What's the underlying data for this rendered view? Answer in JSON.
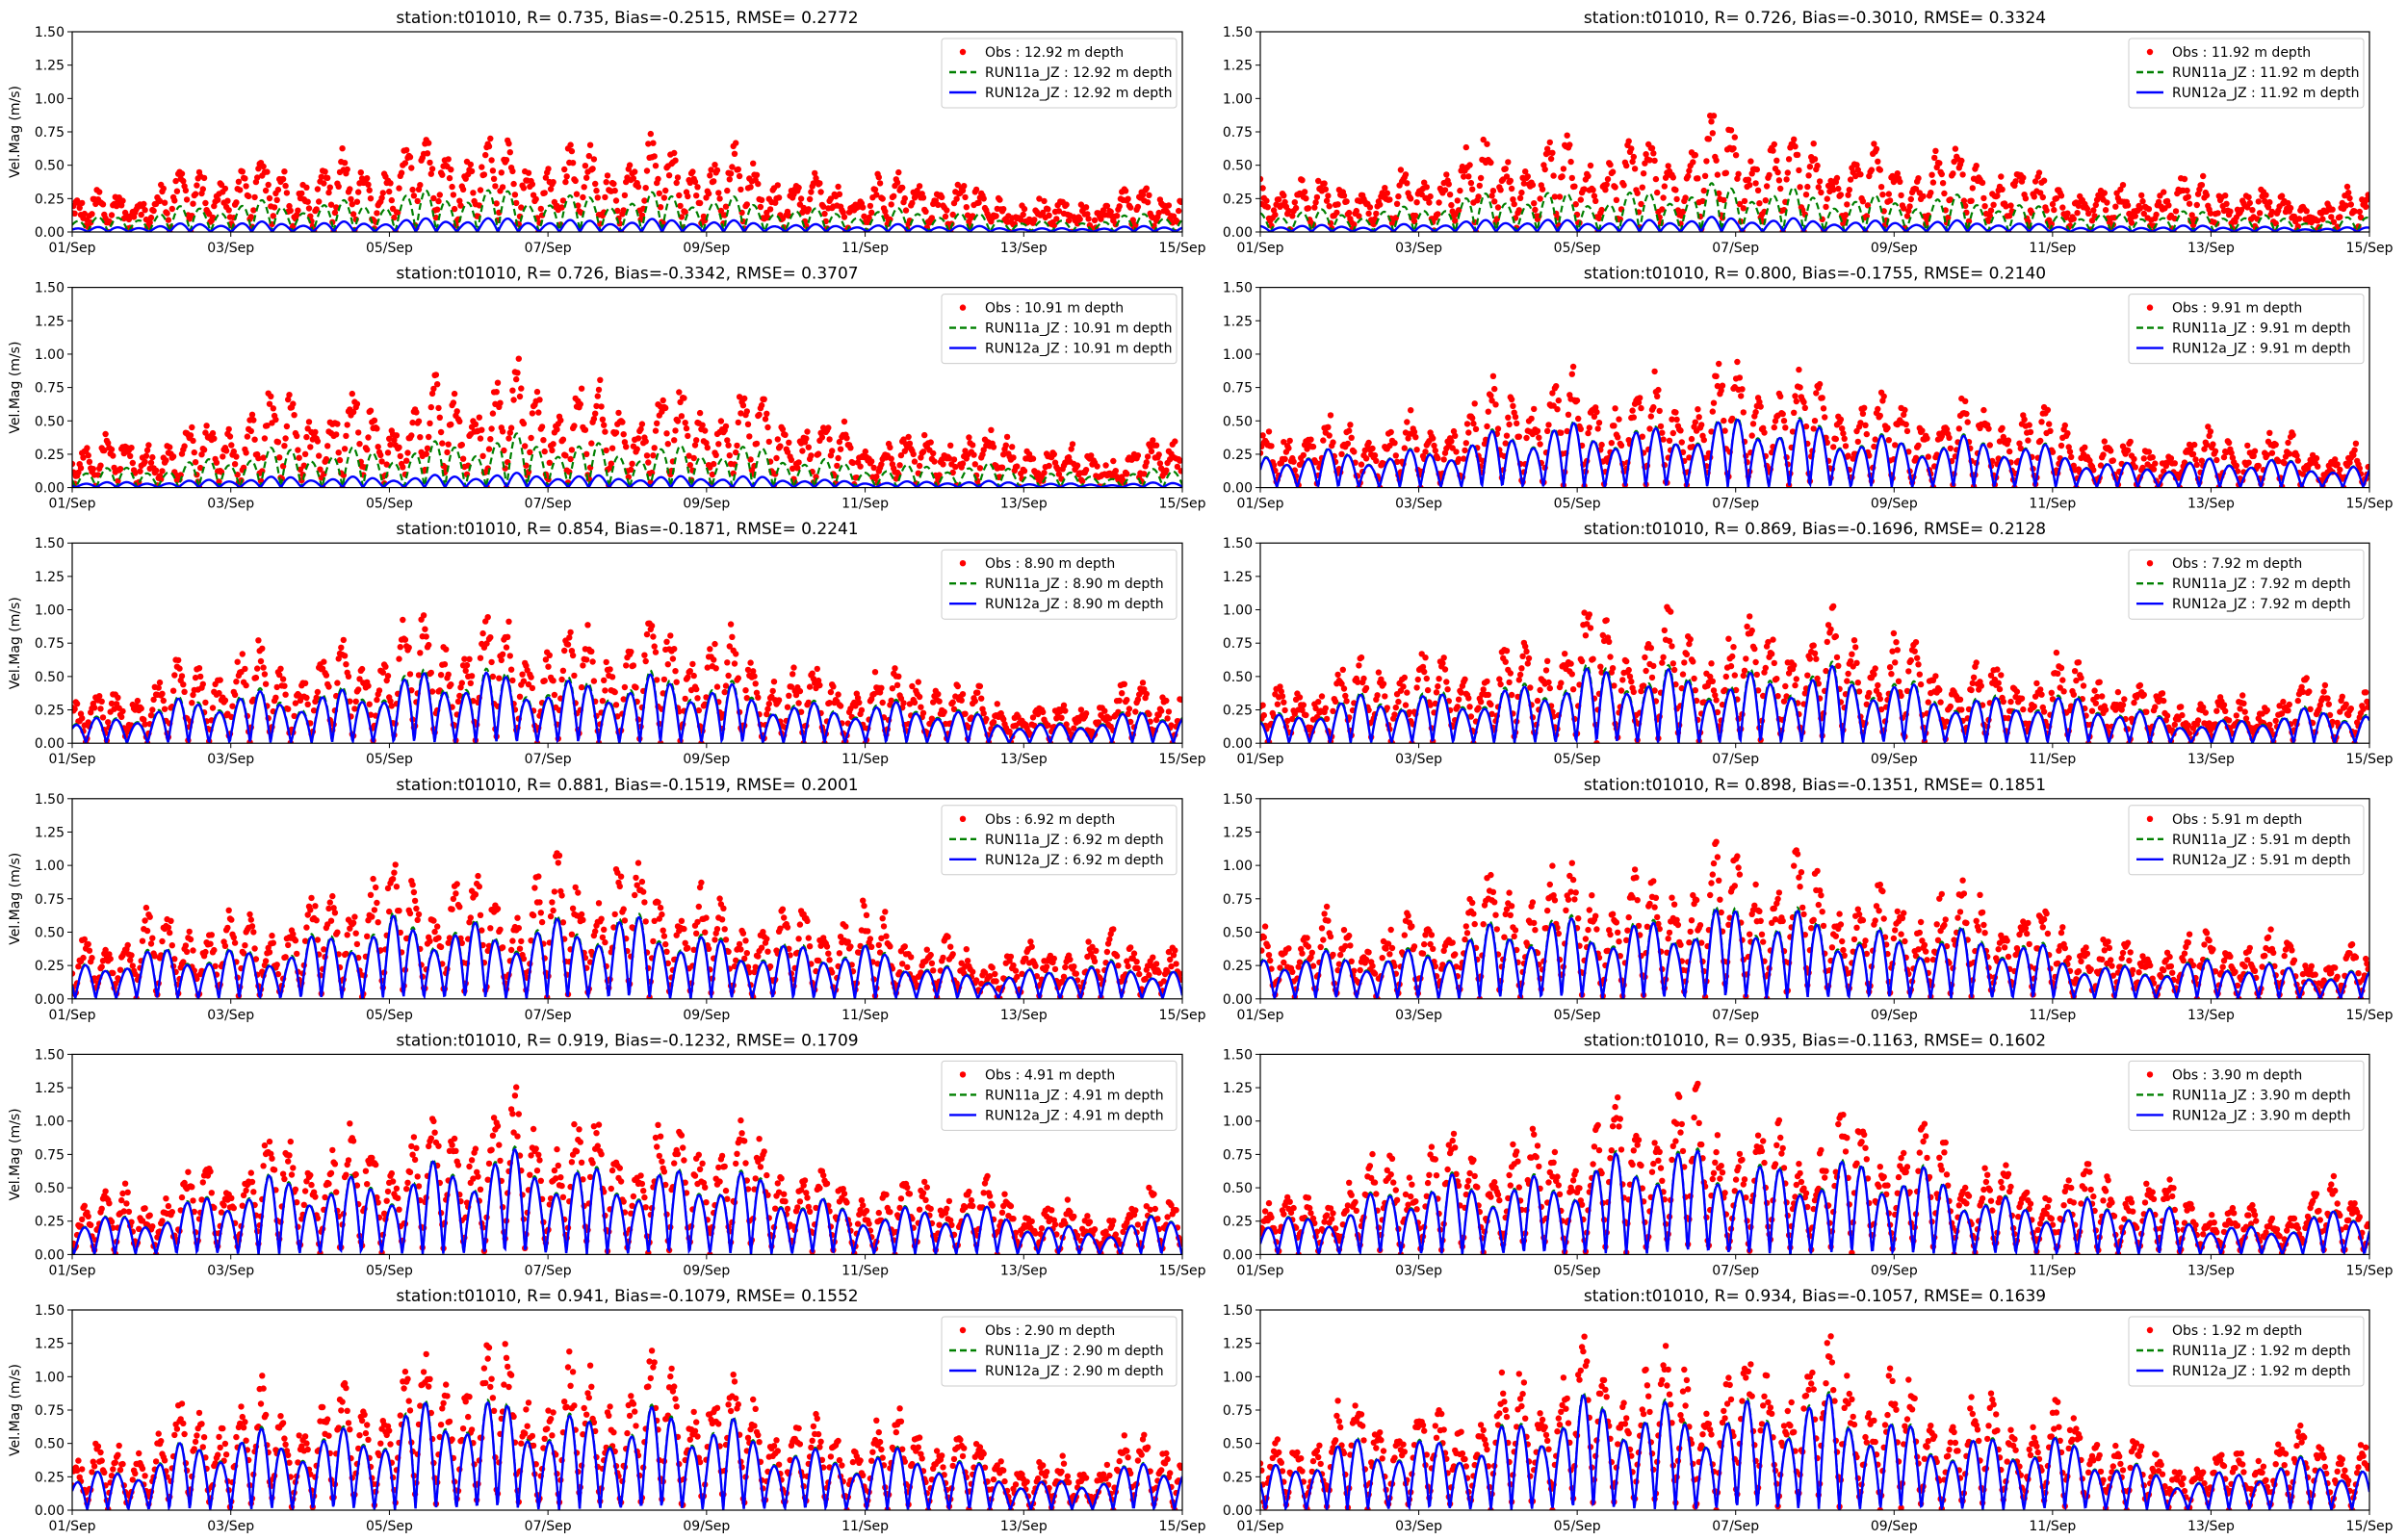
{
  "colors": {
    "obs": "#ff0000",
    "run11a": "#008000",
    "run12a": "#0000ff",
    "axis": "#000000"
  },
  "chart_data": {
    "type": "scatter+line",
    "layout": "6 rows x 2 columns",
    "ylabel": "Vel.Mag (m/s)",
    "ylim": [
      0,
      1.5
    ],
    "yticks": [
      "0.00",
      "0.25",
      "0.50",
      "0.75",
      "1.00",
      "1.25",
      "1.50"
    ],
    "xlim_days": [
      0,
      14
    ],
    "xticks": [
      "01/Sep",
      "03/Sep",
      "05/Sep",
      "07/Sep",
      "09/Sep",
      "11/Sep",
      "13/Sep",
      "15/Sep"
    ],
    "legend_position": "top-right",
    "series_names": [
      "Obs",
      "RUN11a_JZ",
      "RUN12a_JZ"
    ],
    "panels": [
      {
        "title": "station:t01010, R= 0.735, Bias=-0.2515, RMSE= 0.2772",
        "depth": "12.92",
        "legend": [
          "Obs : 12.92 m depth",
          "RUN11a_JZ : 12.92 m depth",
          "RUN12a_JZ : 12.92 m depth"
        ],
        "obs_peak": 0.55,
        "run11a_scale": 0.55,
        "run12a_scale": 0.18
      },
      {
        "title": "station:t01010, R= 0.726, Bias=-0.3010, RMSE= 0.3324",
        "depth": "11.92",
        "legend": [
          "Obs : 11.92 m depth",
          "RUN11a_JZ : 11.92 m depth",
          "RUN12a_JZ : 11.92 m depth"
        ],
        "obs_peak": 0.6,
        "run11a_scale": 0.55,
        "run12a_scale": 0.17
      },
      {
        "title": "station:t01010, R= 0.726, Bias=-0.3342, RMSE= 0.3707",
        "depth": "10.91",
        "legend": [
          "Obs : 10.91 m depth",
          "RUN11a_JZ : 10.91 m depth",
          "RUN12a_JZ : 10.91 m depth"
        ],
        "obs_peak": 0.65,
        "run11a_scale": 0.55,
        "run12a_scale": 0.15
      },
      {
        "title": "station:t01010, R= 0.800, Bias=-0.1755, RMSE= 0.2140",
        "depth": "9.91",
        "legend": [
          "Obs : 9.91 m depth",
          "RUN11a_JZ : 9.91 m depth",
          "RUN12a_JZ : 9.91 m depth"
        ],
        "obs_peak": 0.7,
        "run11a_scale": 0.72,
        "run12a_scale": 0.7
      },
      {
        "title": "station:t01010, R= 0.854, Bias=-0.1871, RMSE= 0.2241",
        "depth": "8.90",
        "legend": [
          "Obs : 8.90 m depth",
          "RUN11a_JZ : 8.90 m depth",
          "RUN12a_JZ : 8.90 m depth"
        ],
        "obs_peak": 0.75,
        "run11a_scale": 0.72,
        "run12a_scale": 0.68
      },
      {
        "title": "station:t01010, R= 0.869, Bias=-0.1696, RMSE= 0.2128",
        "depth": "7.92",
        "legend": [
          "Obs : 7.92 m depth",
          "RUN11a_JZ : 7.92 m depth",
          "RUN12a_JZ : 7.92 m depth"
        ],
        "obs_peak": 0.78,
        "run11a_scale": 0.74,
        "run12a_scale": 0.7
      },
      {
        "title": "station:t01010, R= 0.881, Bias=-0.1519, RMSE= 0.2001",
        "depth": "6.92",
        "legend": [
          "Obs : 6.92 m depth",
          "RUN11a_JZ : 6.92 m depth",
          "RUN12a_JZ : 6.92 m depth"
        ],
        "obs_peak": 0.82,
        "run11a_scale": 0.75,
        "run12a_scale": 0.72
      },
      {
        "title": "station:t01010, R= 0.898, Bias=-0.1351, RMSE= 0.1851",
        "depth": "5.91",
        "legend": [
          "Obs : 5.91 m depth",
          "RUN11a_JZ : 5.91 m depth",
          "RUN12a_JZ : 5.91 m depth"
        ],
        "obs_peak": 0.85,
        "run11a_scale": 0.78,
        "run12a_scale": 0.75
      },
      {
        "title": "station:t01010, R= 0.919, Bias=-0.1232, RMSE= 0.1709",
        "depth": "4.91",
        "legend": [
          "Obs : 4.91 m depth",
          "RUN11a_JZ : 4.91 m depth",
          "RUN12a_JZ : 4.91 m depth"
        ],
        "obs_peak": 0.9,
        "run11a_scale": 0.8,
        "run12a_scale": 0.78
      },
      {
        "title": "station:t01010, R= 0.935, Bias=-0.1163, RMSE= 0.1602",
        "depth": "3.90",
        "legend": [
          "Obs : 3.90 m depth",
          "RUN11a_JZ : 3.90 m depth",
          "RUN12a_JZ : 3.90 m depth"
        ],
        "obs_peak": 0.92,
        "run11a_scale": 0.82,
        "run12a_scale": 0.8
      },
      {
        "title": "station:t01010, R= 0.941, Bias=-0.1079, RMSE= 0.1552",
        "depth": "2.90",
        "legend": [
          "Obs : 2.90 m depth",
          "RUN11a_JZ : 2.90 m depth",
          "RUN12a_JZ : 2.90 m depth"
        ],
        "obs_peak": 0.95,
        "run11a_scale": 0.84,
        "run12a_scale": 0.82
      },
      {
        "title": "station:t01010, R= 0.934, Bias=-0.1057, RMSE= 0.1639",
        "depth": "1.92",
        "legend": [
          "Obs : 1.92 m depth",
          "RUN11a_JZ : 1.92 m depth",
          "RUN12a_JZ : 1.92 m depth"
        ],
        "obs_peak": 1.0,
        "run11a_scale": 0.84,
        "run12a_scale": 0.82
      }
    ]
  }
}
